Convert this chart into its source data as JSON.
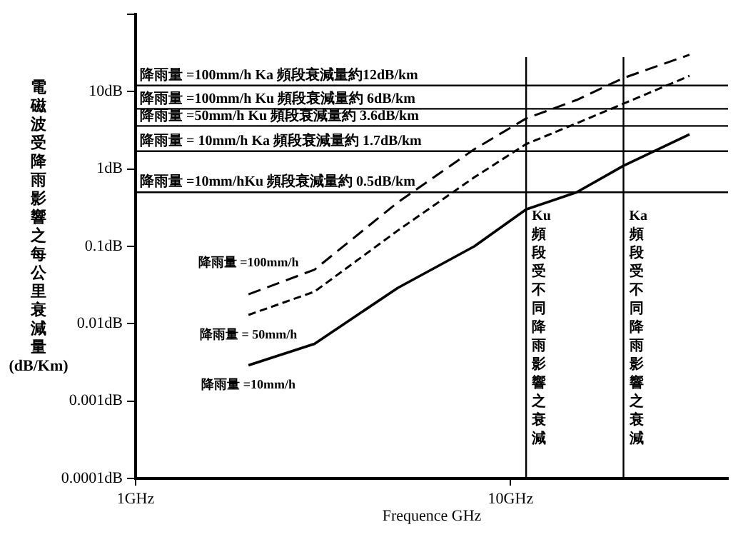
{
  "chart_data": {
    "type": "line",
    "xlabel": "Frequence GHz",
    "ylabel": "電磁波受降雨影響之每公里衰減量(dB/Km)",
    "x": [
      2,
      3,
      5,
      8,
      11,
      15,
      20,
      30
    ],
    "series": [
      {
        "name": "降雨量 =100mm/h",
        "color": "#000000",
        "line_style": "dashed",
        "values": [
          0.024,
          0.05,
          0.37,
          1.8,
          4.5,
          7.8,
          15,
          30
        ]
      },
      {
        "name": "降雨量 = 50mm/h",
        "color": "#000000",
        "line_style": "dashed",
        "values": [
          0.013,
          0.026,
          0.16,
          0.78,
          2.1,
          3.9,
          7,
          16
        ]
      },
      {
        "name": "降雨量 =10mm/h",
        "color": "#000000",
        "line_style": "solid",
        "values": [
          0.0029,
          0.0055,
          0.029,
          0.1,
          0.3,
          0.5,
          1.1,
          2.8
        ]
      }
    ],
    "log": "xy",
    "xlim": [
      1,
      38
    ],
    "xticks": [
      {
        "value": 1,
        "label": "1GHz"
      },
      {
        "value": 10,
        "label": "10GHz"
      }
    ],
    "ylim": [
      0.0001,
      100
    ],
    "yticks": [
      {
        "value": 0.0001,
        "label": "0.0001dB"
      },
      {
        "value": 0.001,
        "label": "0.001dB"
      },
      {
        "value": 0.01,
        "label": "0.01dB"
      },
      {
        "value": 0.1,
        "label": "0.1dB"
      },
      {
        "value": 1,
        "label": "1dB"
      },
      {
        "value": 10,
        "label": "10dB"
      },
      {
        "value": 100,
        "label": null
      }
    ],
    "ref_lines": [
      {
        "axis": "y",
        "value": 12,
        "label": "降雨量 =100mm/h Ka 頻段衰減量約12dB/km"
      },
      {
        "axis": "y",
        "value": 6,
        "label": "降雨量 =100mm/h Ku 頻段衰減量約 6dB/km"
      },
      {
        "axis": "y",
        "value": 3.6,
        "label": "降雨量 =50mm/h Ku 頻段衰減量約 3.6dB/km"
      },
      {
        "axis": "y",
        "value": 1.7,
        "label": "降雨量 = 10mm/h Ka 頻段衰減量約 1.7dB/km"
      },
      {
        "axis": "y",
        "value": 0.5,
        "label": "降雨量 =10mm/hKu 頻段衰減量約 0.5dB/km"
      },
      {
        "axis": "x",
        "value": 11,
        "label": "Ku頻段受不同降雨影響之衰減"
      },
      {
        "axis": "x",
        "value": 20,
        "label": "Ka頻段受不同降雨影響之衰減"
      }
    ],
    "grid": false,
    "legend": false,
    "marker": "none"
  }
}
